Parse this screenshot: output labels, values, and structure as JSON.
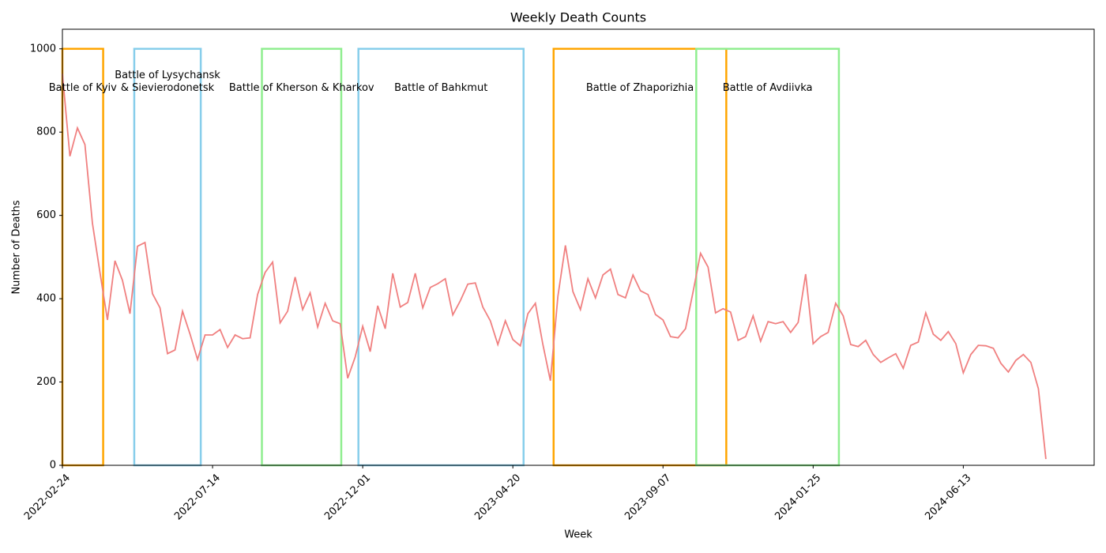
{
  "chart_data": {
    "type": "line",
    "title": "Weekly Death Counts",
    "x_label": "Week",
    "y_label": "Number of Deaths",
    "x": [
      "2022-02-24",
      "2022-03-03",
      "2022-03-10",
      "2022-03-17",
      "2022-03-24",
      "2022-03-31",
      "2022-04-07",
      "2022-04-14",
      "2022-04-21",
      "2022-04-28",
      "2022-05-05",
      "2022-05-12",
      "2022-05-19",
      "2022-05-26",
      "2022-06-02",
      "2022-06-09",
      "2022-06-16",
      "2022-06-23",
      "2022-06-30",
      "2022-07-07",
      "2022-07-14",
      "2022-07-21",
      "2022-07-28",
      "2022-08-04",
      "2022-08-11",
      "2022-08-18",
      "2022-08-25",
      "2022-09-01",
      "2022-09-08",
      "2022-09-15",
      "2022-09-22",
      "2022-09-29",
      "2022-10-06",
      "2022-10-13",
      "2022-10-20",
      "2022-10-27",
      "2022-11-03",
      "2022-11-10",
      "2022-11-17",
      "2022-11-24",
      "2022-12-01",
      "2022-12-08",
      "2022-12-15",
      "2022-12-22",
      "2022-12-29",
      "2023-01-05",
      "2023-01-12",
      "2023-01-19",
      "2023-01-26",
      "2023-02-02",
      "2023-02-09",
      "2023-02-16",
      "2023-02-23",
      "2023-03-02",
      "2023-03-09",
      "2023-03-16",
      "2023-03-23",
      "2023-03-30",
      "2023-04-06",
      "2023-04-13",
      "2023-04-20",
      "2023-04-27",
      "2023-05-04",
      "2023-05-11",
      "2023-05-18",
      "2023-05-25",
      "2023-06-01",
      "2023-06-08",
      "2023-06-15",
      "2023-06-22",
      "2023-06-29",
      "2023-07-06",
      "2023-07-13",
      "2023-07-20",
      "2023-07-27",
      "2023-08-03",
      "2023-08-10",
      "2023-08-17",
      "2023-08-24",
      "2023-08-31",
      "2023-09-07",
      "2023-09-14",
      "2023-09-21",
      "2023-09-28",
      "2023-10-05",
      "2023-10-12",
      "2023-10-19",
      "2023-10-26",
      "2023-11-02",
      "2023-11-09",
      "2023-11-16",
      "2023-11-23",
      "2023-11-30",
      "2023-12-07",
      "2023-12-14",
      "2023-12-21",
      "2023-12-28",
      "2024-01-04",
      "2024-01-11",
      "2024-01-18",
      "2024-01-25",
      "2024-02-01",
      "2024-02-08",
      "2024-02-15",
      "2024-02-22",
      "2024-02-29",
      "2024-03-07",
      "2024-03-14",
      "2024-03-21",
      "2024-03-28",
      "2024-04-04",
      "2024-04-11",
      "2024-04-18",
      "2024-04-25",
      "2024-05-02",
      "2024-05-09",
      "2024-05-16",
      "2024-05-23",
      "2024-05-30",
      "2024-06-06",
      "2024-06-13",
      "2024-06-20",
      "2024-06-27",
      "2024-07-04",
      "2024-07-11",
      "2024-07-18",
      "2024-07-25",
      "2024-08-01",
      "2024-08-08",
      "2024-08-15",
      "2024-08-22",
      "2024-08-29"
    ],
    "series": [
      {
        "name": "Weekly deaths",
        "color": "#f08080",
        "values": [
          940,
          742,
          810,
          770,
          581,
          463,
          349,
          491,
          444,
          364,
          526,
          535,
          412,
          378,
          268,
          277,
          370,
          315,
          254,
          313,
          313,
          326,
          283,
          313,
          304,
          306,
          410,
          463,
          488,
          342,
          370,
          452,
          374,
          414,
          332,
          389,
          347,
          340,
          209,
          260,
          334,
          273,
          383,
          328,
          461,
          380,
          391,
          461,
          378,
          427,
          436,
          448,
          361,
          395,
          435,
          438,
          380,
          347,
          290,
          347,
          302,
          287,
          364,
          389,
          290,
          203,
          406,
          528,
          417,
          374,
          448,
          402,
          457,
          471,
          410,
          402,
          457,
          419,
          410,
          362,
          349,
          309,
          306,
          328,
          416,
          509,
          476,
          366,
          376,
          368,
          300,
          309,
          359,
          298,
          345,
          340,
          345,
          319,
          343,
          459,
          292,
          309,
          319,
          389,
          359,
          290,
          285,
          300,
          266,
          247,
          258,
          268,
          233,
          288,
          296,
          366,
          315,
          300,
          321,
          292,
          222,
          266,
          288,
          287,
          281,
          245,
          224,
          252,
          266,
          247,
          184,
          15
        ]
      }
    ],
    "xlim": [
      "2022-02-24",
      "2024-10-13"
    ],
    "xticks": [
      "2022-02-24",
      "2022-07-14",
      "2022-12-01",
      "2023-04-20",
      "2023-09-07",
      "2024-01-25",
      "2024-06-13"
    ],
    "ylim": [
      0,
      1047
    ],
    "yticks": [
      0,
      200,
      400,
      600,
      800,
      1000
    ],
    "grid": false,
    "span_y": [
      0,
      1000
    ],
    "battles": [
      {
        "lines": [
          "Battle of Kyiv"
        ],
        "start": "2022-02-24",
        "end": "2022-04-03",
        "color": "#ffa500"
      },
      {
        "lines": [
          "Battle of Lysychansk",
          "& Sievierodonetsk"
        ],
        "start": "2022-05-02",
        "end": "2022-07-03",
        "color": "#87ceeb"
      },
      {
        "lines": [
          "Battle of Kherson & Kharkov"
        ],
        "start": "2022-08-29",
        "end": "2022-11-11",
        "color": "#90ee90"
      },
      {
        "lines": [
          "Battle of Bahkmut"
        ],
        "start": "2022-11-27",
        "end": "2023-04-30",
        "color": "#87ceeb"
      },
      {
        "lines": [
          "Battle of Zhaporizhia"
        ],
        "start": "2023-05-28",
        "end": "2023-11-05",
        "color": "#ffa500"
      },
      {
        "lines": [
          "Battle of Avdiivka"
        ],
        "start": "2023-10-08",
        "end": "2024-02-18",
        "color": "#90ee90"
      }
    ]
  }
}
